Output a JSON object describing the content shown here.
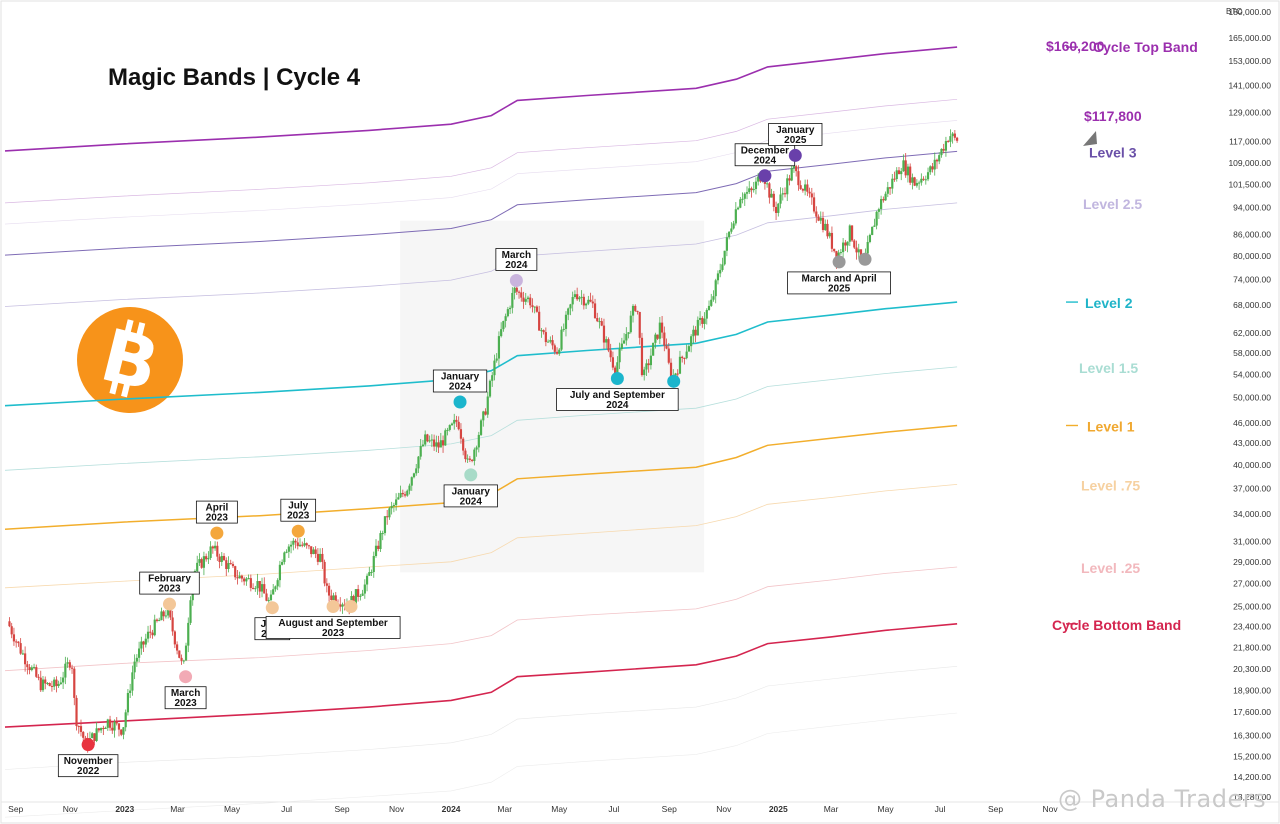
{
  "title": "Magic Bands | Cycle 4",
  "watermark": "@ Panda Traders",
  "chart_data": {
    "type": "line",
    "axis_unit": "BTC",
    "y_scale": "log",
    "ylim": [
      13280,
      180000
    ],
    "yticks": [
      180000,
      165000,
      153000,
      141000,
      129000,
      117000,
      109000,
      101500,
      94000,
      86000,
      80000,
      74000,
      68000,
      62000,
      58000,
      54000,
      50000,
      46000,
      43000,
      40000,
      37000,
      34000,
      31000,
      29000,
      27000,
      25000,
      23400,
      21800,
      20300,
      18900,
      17600,
      16300,
      15200,
      14200,
      13280
    ],
    "ytick_labels": [
      "180,000.00",
      "165,000.00",
      "153,000.00",
      "141,000.00",
      "129,000.00",
      "117,000.00",
      "109,000.00",
      "101,500.00",
      "94,000.00",
      "86,000.00",
      "80,000.00",
      "74,000.00",
      "68,000.00",
      "62,000.00",
      "58,000.00",
      "54,000.00",
      "50,000.00",
      "46,000.00",
      "43,000.00",
      "40,000.00",
      "37,000.00",
      "34,000.00",
      "31,000.00",
      "29,000.00",
      "27,000.00",
      "25,000.00",
      "23,400.00",
      "21,800.00",
      "20,300.00",
      "18,900.00",
      "17,600.00",
      "16,300.00",
      "15,200.00",
      "14,200.00",
      "13,280.00"
    ],
    "xlim": [
      "2022-08-20",
      "2025-11-30"
    ],
    "xticks": [
      {
        "date": "2022-09-01",
        "label": "Sep",
        "bold": false
      },
      {
        "date": "2022-11-01",
        "label": "Nov",
        "bold": false
      },
      {
        "date": "2023-01-01",
        "label": "2023",
        "bold": true
      },
      {
        "date": "2023-03-01",
        "label": "Mar",
        "bold": false
      },
      {
        "date": "2023-05-01",
        "label": "May",
        "bold": false
      },
      {
        "date": "2023-07-01",
        "label": "Jul",
        "bold": false
      },
      {
        "date": "2023-09-01",
        "label": "Sep",
        "bold": false
      },
      {
        "date": "2023-11-01",
        "label": "Nov",
        "bold": false
      },
      {
        "date": "2024-01-01",
        "label": "2024",
        "bold": true
      },
      {
        "date": "2024-03-01",
        "label": "Mar",
        "bold": false
      },
      {
        "date": "2024-05-01",
        "label": "May",
        "bold": false
      },
      {
        "date": "2024-07-01",
        "label": "Jul",
        "bold": false
      },
      {
        "date": "2024-09-01",
        "label": "Sep",
        "bold": false
      },
      {
        "date": "2024-11-01",
        "label": "Nov",
        "bold": false
      },
      {
        "date": "2025-01-01",
        "label": "2025",
        "bold": true
      },
      {
        "date": "2025-03-01",
        "label": "Mar",
        "bold": false
      },
      {
        "date": "2025-05-01",
        "label": "May",
        "bold": false
      },
      {
        "date": "2025-07-01",
        "label": "Jul",
        "bold": false
      },
      {
        "date": "2025-09-01",
        "label": "Sep",
        "bold": false
      },
      {
        "date": "2025-11-01",
        "label": "Nov",
        "bold": false
      }
    ],
    "band_dates": [
      "2022-08-20",
      "2023-01-01",
      "2023-06-01",
      "2023-10-01",
      "2024-01-01",
      "2024-02-15",
      "2024-03-15",
      "2024-06-01",
      "2024-10-01",
      "2024-11-15",
      "2024-12-20",
      "2025-03-01",
      "2025-05-01",
      "2025-07-20"
    ],
    "bands": [
      {
        "label": "Cycle Top Band",
        "color": "#9b2fae",
        "width": 1.6,
        "values": [
          113500,
          116200,
          118800,
          121500,
          124000,
          127600,
          134200,
          136400,
          139700,
          144000,
          150000,
          153600,
          156800,
          160200
        ]
      },
      {
        "label": "",
        "color": "#d9b8e2",
        "width": 0.7,
        "values": [
          95500,
          97700,
          99900,
          102100,
          104300,
          107300,
          112800,
          114700,
          117400,
          121100,
          126100,
          129100,
          131800,
          134700
        ]
      },
      {
        "label": "",
        "color": "#e6dcef",
        "width": 0.6,
        "values": [
          89000,
          91100,
          93100,
          95200,
          97200,
          100000,
          105200,
          106900,
          109500,
          112900,
          117600,
          120400,
          122900,
          125600
        ]
      },
      {
        "label": "Level 3",
        "color": "#7e6bb5",
        "width": 1.0,
        "values": [
          80300,
          82200,
          84000,
          85900,
          87700,
          90300,
          94900,
          96500,
          98800,
          101800,
          106100,
          108600,
          110900,
          113300
        ]
      },
      {
        "label": "Level 2.5",
        "color": "#c6bfe0",
        "width": 0.8,
        "values": [
          67700,
          69300,
          70800,
          72400,
          73900,
          76100,
          80000,
          81300,
          83300,
          85800,
          89400,
          91500,
          93500,
          95500
        ]
      },
      {
        "label": "Level 2",
        "color": "#1fbdcc",
        "width": 1.6,
        "values": [
          48700,
          49800,
          50900,
          52000,
          53100,
          54700,
          57500,
          58500,
          59900,
          61700,
          64300,
          65800,
          67200,
          68700
        ]
      },
      {
        "label": "Level 1.5",
        "color": "#b6dfdc",
        "width": 0.8,
        "values": [
          39300,
          40200,
          41100,
          42000,
          42900,
          44100,
          46400,
          47200,
          48300,
          49800,
          51900,
          53100,
          54200,
          55400
        ]
      },
      {
        "label": "Level 1",
        "color": "#f2ae2c",
        "width": 1.5,
        "values": [
          32300,
          33100,
          33800,
          34600,
          35300,
          36300,
          38200,
          38800,
          39700,
          41000,
          42700,
          43700,
          44600,
          45600
        ]
      },
      {
        "label": "Level .75",
        "color": "#f7d9ae",
        "width": 0.8,
        "values": [
          26600,
          27200,
          27800,
          28500,
          29000,
          29900,
          31400,
          31900,
          32700,
          33700,
          35100,
          35900,
          36700,
          37500
        ]
      },
      {
        "label": "Level .25",
        "color": "#f2c4c8",
        "width": 0.8,
        "values": [
          20200,
          20700,
          21100,
          21600,
          22100,
          22700,
          23900,
          24300,
          24800,
          25600,
          26700,
          27300,
          27900,
          28500
        ]
      },
      {
        "label": "Cycle Bottom Band",
        "color": "#d4254f",
        "width": 1.6,
        "values": [
          16750,
          17100,
          17500,
          17900,
          18300,
          18800,
          19800,
          20100,
          20600,
          21200,
          22100,
          22600,
          23100,
          23600
        ]
      },
      {
        "label": "",
        "color": "#e8e8e8",
        "width": 0.6,
        "values": [
          14550,
          14900,
          15200,
          15550,
          15900,
          16350,
          17200,
          17500,
          17900,
          18450,
          19200,
          19650,
          20050,
          20500
        ]
      },
      {
        "label": "",
        "color": "#ececec",
        "width": 0.6,
        "values": [
          12420,
          12700,
          13000,
          13300,
          13550,
          13950,
          14700,
          14950,
          15300,
          15750,
          16400,
          16800,
          17150,
          17550
        ]
      }
    ],
    "price_series": [
      {
        "date": "2022-08-25",
        "value": 23800
      },
      {
        "date": "2022-09-10",
        "value": 21500
      },
      {
        "date": "2022-10-01",
        "value": 19300
      },
      {
        "date": "2022-10-20",
        "value": 19200
      },
      {
        "date": "2022-11-05",
        "value": 21100
      },
      {
        "date": "2022-11-09",
        "value": 17400
      },
      {
        "date": "2022-11-21",
        "value": 15800
      },
      {
        "date": "2022-12-15",
        "value": 17100
      },
      {
        "date": "2023-01-01",
        "value": 16600
      },
      {
        "date": "2023-01-14",
        "value": 20800
      },
      {
        "date": "2023-01-30",
        "value": 22800
      },
      {
        "date": "2023-02-20",
        "value": 24700
      },
      {
        "date": "2023-03-10",
        "value": 20200
      },
      {
        "date": "2023-03-20",
        "value": 27800
      },
      {
        "date": "2023-04-11",
        "value": 30300
      },
      {
        "date": "2023-05-10",
        "value": 27600
      },
      {
        "date": "2023-06-01",
        "value": 27000
      },
      {
        "date": "2023-06-15",
        "value": 25200
      },
      {
        "date": "2023-07-01",
        "value": 30400
      },
      {
        "date": "2023-07-14",
        "value": 31000
      },
      {
        "date": "2023-08-10",
        "value": 29500
      },
      {
        "date": "2023-08-18",
        "value": 26100
      },
      {
        "date": "2023-09-11",
        "value": 25200
      },
      {
        "date": "2023-10-01",
        "value": 27000
      },
      {
        "date": "2023-10-24",
        "value": 33900
      },
      {
        "date": "2023-11-15",
        "value": 37000
      },
      {
        "date": "2023-12-05",
        "value": 43500
      },
      {
        "date": "2023-12-20",
        "value": 42500
      },
      {
        "date": "2024-01-11",
        "value": 46500
      },
      {
        "date": "2024-01-23",
        "value": 39600
      },
      {
        "date": "2024-02-10",
        "value": 47500
      },
      {
        "date": "2024-02-28",
        "value": 62000
      },
      {
        "date": "2024-03-14",
        "value": 71500
      },
      {
        "date": "2024-04-01",
        "value": 69000
      },
      {
        "date": "2024-04-17",
        "value": 61000
      },
      {
        "date": "2024-05-01",
        "value": 58500
      },
      {
        "date": "2024-05-21",
        "value": 71000
      },
      {
        "date": "2024-06-10",
        "value": 68000
      },
      {
        "date": "2024-07-05",
        "value": 55000
      },
      {
        "date": "2024-07-29",
        "value": 69000
      },
      {
        "date": "2024-08-05",
        "value": 53000
      },
      {
        "date": "2024-08-25",
        "value": 64000
      },
      {
        "date": "2024-09-06",
        "value": 53000
      },
      {
        "date": "2024-10-01",
        "value": 62000
      },
      {
        "date": "2024-10-20",
        "value": 68000
      },
      {
        "date": "2024-11-12",
        "value": 89000
      },
      {
        "date": "2024-11-22",
        "value": 98000
      },
      {
        "date": "2024-12-05",
        "value": 99000
      },
      {
        "date": "2024-12-17",
        "value": 106000
      },
      {
        "date": "2024-12-31",
        "value": 93000
      },
      {
        "date": "2025-01-20",
        "value": 107000
      },
      {
        "date": "2025-02-05",
        "value": 98000
      },
      {
        "date": "2025-02-25",
        "value": 88000
      },
      {
        "date": "2025-03-10",
        "value": 80000
      },
      {
        "date": "2025-03-25",
        "value": 87000
      },
      {
        "date": "2025-04-08",
        "value": 77000
      },
      {
        "date": "2025-04-25",
        "value": 94000
      },
      {
        "date": "2025-05-22",
        "value": 109000
      },
      {
        "date": "2025-06-05",
        "value": 102000
      },
      {
        "date": "2025-06-25",
        "value": 107000
      },
      {
        "date": "2025-07-14",
        "value": 120000
      },
      {
        "date": "2025-07-20",
        "value": 117800
      }
    ],
    "markers": [
      {
        "date": "2022-11-21",
        "value": 15800,
        "color": "#e8333f",
        "label": [
          "November",
          "2022"
        ],
        "label_pos": "below"
      },
      {
        "date": "2023-02-20",
        "value": 25200,
        "color": "#f3c798",
        "label": [
          "February",
          "2023"
        ],
        "label_pos": "above"
      },
      {
        "date": "2023-03-10",
        "value": 19800,
        "color": "#f2aab5",
        "label": [
          "March",
          "2023"
        ],
        "label_pos": "below"
      },
      {
        "date": "2023-04-14",
        "value": 31900,
        "color": "#f4a73c",
        "label": [
          "April",
          "2023"
        ],
        "label_pos": "above"
      },
      {
        "date": "2023-06-15",
        "value": 24900,
        "color": "#f3c798",
        "label": [
          "June",
          "2023"
        ],
        "label_pos": "below"
      },
      {
        "date": "2023-07-14",
        "value": 32100,
        "color": "#f4a73c",
        "label": [
          "July",
          "2023"
        ],
        "label_pos": "above"
      },
      {
        "date": "2023-08-22",
        "value": 25000,
        "color": "#f3c798",
        "label": [
          "August and September",
          "2023"
        ],
        "label_pos": "below"
      },
      {
        "date": "2023-09-11",
        "value": 25000,
        "color": "#f3c798",
        "label": null,
        "label_pos": "none"
      },
      {
        "date": "2024-01-11",
        "value": 49300,
        "color": "#1bb5cc",
        "label": [
          "January",
          "2024"
        ],
        "label_pos": "above"
      },
      {
        "date": "2024-01-23",
        "value": 38700,
        "color": "#a8dbc8",
        "label": [
          "January",
          "2024"
        ],
        "label_pos": "below"
      },
      {
        "date": "2024-03-14",
        "value": 73800,
        "color": "#c9b4dd",
        "label": [
          "March",
          "2024"
        ],
        "label_pos": "above"
      },
      {
        "date": "2024-07-05",
        "value": 53300,
        "color": "#1bb5cc",
        "label": [
          "July and September",
          "2024"
        ],
        "label_pos": "below"
      },
      {
        "date": "2024-09-06",
        "value": 52800,
        "color": "#1bb5cc",
        "label": null,
        "label_pos": "none"
      },
      {
        "date": "2024-12-17",
        "value": 104500,
        "color": "#6940aa",
        "label": [
          "December",
          "2024"
        ],
        "label_pos": "above"
      },
      {
        "date": "2025-01-20",
        "value": 111800,
        "color": "#6940aa",
        "label": [
          "January",
          "2025"
        ],
        "label_pos": "above"
      },
      {
        "date": "2025-03-10",
        "value": 78500,
        "color": "#999999",
        "label": [
          "March and April",
          "2025"
        ],
        "label_pos": "below"
      },
      {
        "date": "2025-04-08",
        "value": 79200,
        "color": "#999999",
        "label": null,
        "label_pos": "none"
      }
    ],
    "annotations": [
      {
        "text": "$160,200",
        "color": "#9b2fae"
      },
      {
        "text": "$117,800",
        "color": "#9b2fae"
      }
    ],
    "band_labels": [
      {
        "text": "Cycle Top Band",
        "color": "#9b2fae"
      },
      {
        "text": "Level 3",
        "color": "#6a50a8"
      },
      {
        "text": "Level 2.5",
        "color": "#c1b6df"
      },
      {
        "text": "Level 2",
        "color": "#1fb4c8"
      },
      {
        "text": "Level 1.5",
        "color": "#a9ddd3"
      },
      {
        "text": "Level 1",
        "color": "#f0a830"
      },
      {
        "text": "Level .75",
        "color": "#f6d1a1"
      },
      {
        "text": "Level .25",
        "color": "#f2b8bd"
      },
      {
        "text": "Cycle Bottom Band",
        "color": "#d4254f"
      }
    ]
  }
}
